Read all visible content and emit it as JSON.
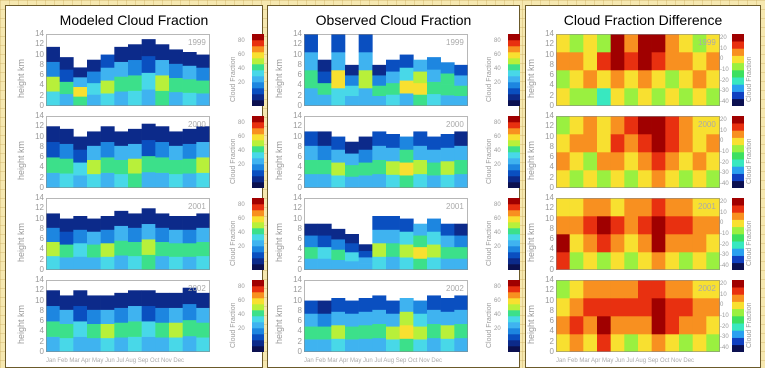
{
  "titles": [
    "Modeled Cloud Fraction",
    "Observed Cloud Fraction",
    "Cloud Fraction Difference"
  ],
  "years": [
    "1999",
    "2000",
    "2001",
    "2002"
  ],
  "ylabel": "height km",
  "yticks": [
    "0",
    "2",
    "4",
    "6",
    "8",
    "10",
    "12",
    "14"
  ],
  "colorbar_label": "Cloud Fraction",
  "cb_ticks_abs": [
    "80",
    "60",
    "40",
    "20"
  ],
  "cb_ticks_diff": [
    "20",
    "10",
    "0",
    "-10",
    "-20",
    "-30",
    "-40"
  ],
  "months_label": "Jan Feb Mar Apr May Jun  Jul  Aug Sep Oct Nov Dec",
  "colors": {
    "abs_scale": [
      "#0b1050",
      "#0c2a8a",
      "#0a4fc0",
      "#1d86e0",
      "#3fb3f0",
      "#48d8e8",
      "#3ce08a",
      "#b8f03a",
      "#f8e030",
      "#f89020",
      "#e83010",
      "#a00000"
    ],
    "diff_scale": [
      "#0b1050",
      "#1040c0",
      "#2aa0f0",
      "#38e8c0",
      "#3ce060",
      "#9af040",
      "#f8e030",
      "#f89020",
      "#e83010",
      "#a00000"
    ]
  },
  "chart_data": [
    {
      "type": "heatmap",
      "title": "Modeled Cloud Fraction",
      "x": [
        "Jan",
        "Feb",
        "Mar",
        "Apr",
        "May",
        "Jun",
        "Jul",
        "Aug",
        "Sep",
        "Oct",
        "Nov",
        "Dec"
      ],
      "y_km_range": [
        0,
        14
      ],
      "value_range": [
        0,
        90
      ],
      "panels": [
        {
          "year": "1999",
          "tops": [
            11.5,
            9.5,
            7.5,
            9,
            10,
            11.5,
            12,
            13,
            12,
            11,
            10.5,
            10
          ],
          "profiles": [
            [
              40,
              55,
              25,
              10
            ],
            [
              35,
              45,
              20,
              8
            ],
            [
              45,
              60,
              30,
              12
            ],
            [
              30,
              40,
              25,
              10
            ],
            [
              40,
              55,
              35,
              15
            ],
            [
              35,
              50,
              30,
              12
            ],
            [
              40,
              45,
              25,
              10
            ],
            [
              30,
              40,
              20,
              8
            ],
            [
              45,
              55,
              30,
              10
            ],
            [
              35,
              45,
              25,
              10
            ],
            [
              40,
              50,
              30,
              12
            ],
            [
              35,
              50,
              25,
              10
            ]
          ]
        },
        {
          "year": "2000",
          "tops": [
            12,
            11.5,
            10,
            11,
            12,
            11,
            11.5,
            12.5,
            12,
            11,
            11.5,
            12
          ],
          "profiles": [
            [
              35,
              50,
              20,
              8
            ],
            [
              40,
              45,
              25,
              10
            ],
            [
              30,
              40,
              20,
              10
            ],
            [
              40,
              55,
              30,
              12
            ],
            [
              35,
              45,
              25,
              10
            ],
            [
              40,
              50,
              30,
              12
            ],
            [
              45,
              55,
              30,
              10
            ],
            [
              30,
              45,
              20,
              8
            ],
            [
              35,
              50,
              25,
              10
            ],
            [
              40,
              45,
              30,
              12
            ],
            [
              35,
              50,
              25,
              10
            ],
            [
              40,
              55,
              30,
              12
            ]
          ]
        },
        {
          "year": "2001",
          "tops": [
            11,
            10,
            10.5,
            10,
            10.5,
            11.5,
            11,
            12,
            11,
            10.5,
            10.5,
            11
          ],
          "profiles": [
            [
              40,
              55,
              25,
              10
            ],
            [
              35,
              45,
              20,
              8
            ],
            [
              30,
              40,
              25,
              10
            ],
            [
              35,
              50,
              30,
              12
            ],
            [
              40,
              55,
              25,
              10
            ],
            [
              35,
              45,
              30,
              12
            ],
            [
              40,
              50,
              25,
              10
            ],
            [
              45,
              55,
              30,
              10
            ],
            [
              35,
              45,
              25,
              12
            ],
            [
              40,
              50,
              30,
              10
            ],
            [
              35,
              45,
              25,
              10
            ],
            [
              40,
              50,
              30,
              12
            ]
          ]
        },
        {
          "year": "2002",
          "tops": [
            12,
            11,
            12,
            11,
            11,
            11.5,
            12,
            12,
            11.5,
            11.5,
            12.5,
            11.5
          ],
          "profiles": [
            [
              35,
              45,
              25,
              10
            ],
            [
              40,
              50,
              30,
              12
            ],
            [
              35,
              40,
              20,
              8
            ],
            [
              30,
              50,
              25,
              10
            ],
            [
              40,
              55,
              30,
              12
            ],
            [
              35,
              45,
              25,
              10
            ],
            [
              40,
              50,
              30,
              12
            ],
            [
              30,
              40,
              20,
              10
            ],
            [
              35,
              45,
              25,
              10
            ],
            [
              40,
              55,
              30,
              12
            ],
            [
              35,
              50,
              25,
              10
            ],
            [
              40,
              45,
              30,
              12
            ]
          ]
        }
      ]
    },
    {
      "type": "heatmap",
      "title": "Observed Cloud Fraction",
      "x": [
        "Jan",
        "Feb",
        "Mar",
        "Apr",
        "May",
        "Jun",
        "Jul",
        "Aug",
        "Sep",
        "Oct",
        "Nov",
        "Dec"
      ],
      "y_km_range": [
        0,
        14
      ],
      "value_range": [
        0,
        90
      ],
      "panels": [
        {
          "year": "1999",
          "tops": [
            14,
            9,
            14,
            8,
            14,
            8,
            9,
            10,
            9,
            9.5,
            8.5,
            8
          ],
          "profiles": [
            [
              30,
              50,
              35,
              15
            ],
            [
              35,
              45,
              20,
              10
            ],
            [
              40,
              60,
              30,
              20
            ],
            [
              30,
              40,
              25,
              10
            ],
            [
              35,
              55,
              30,
              15
            ],
            [
              30,
              45,
              25,
              12
            ],
            [
              40,
              50,
              30,
              15
            ],
            [
              35,
              60,
              40,
              20
            ],
            [
              45,
              65,
              55,
              30
            ],
            [
              40,
              50,
              35,
              25
            ],
            [
              35,
              50,
              45,
              25
            ],
            [
              30,
              45,
              30,
              15
            ]
          ]
        },
        {
          "year": "2000",
          "tops": [
            11,
            11,
            10,
            9,
            10,
            11,
            10.5,
            10,
            11,
            10,
            10.5,
            11
          ],
          "profiles": [
            [
              35,
              50,
              30,
              15
            ],
            [
              30,
              45,
              25,
              10
            ],
            [
              40,
              55,
              30,
              15
            ],
            [
              35,
              45,
              30,
              12
            ],
            [
              30,
              50,
              25,
              12
            ],
            [
              35,
              50,
              30,
              15
            ],
            [
              40,
              55,
              35,
              20
            ],
            [
              45,
              60,
              45,
              25
            ],
            [
              40,
              55,
              35,
              20
            ],
            [
              35,
              50,
              30,
              15
            ],
            [
              40,
              55,
              30,
              15
            ],
            [
              35,
              45,
              30,
              12
            ]
          ]
        },
        {
          "year": "2001",
          "tops": [
            9,
            9,
            8,
            7,
            5,
            10.5,
            10.5,
            10,
            9,
            10,
            9,
            9
          ],
          "profiles": [
            [
              30,
              45,
              25,
              12
            ],
            [
              35,
              40,
              20,
              10
            ],
            [
              30,
              45,
              25,
              10
            ],
            [
              35,
              40,
              20,
              8
            ],
            [
              30,
              35,
              20,
              8
            ],
            [
              40,
              55,
              30,
              15
            ],
            [
              35,
              50,
              30,
              15
            ],
            [
              40,
              55,
              40,
              20
            ],
            [
              45,
              60,
              50,
              35
            ],
            [
              40,
              55,
              40,
              25
            ],
            [
              35,
              50,
              30,
              15
            ],
            [
              30,
              45,
              25,
              12
            ]
          ]
        },
        {
          "year": "2002",
          "tops": [
            10,
            10,
            10.5,
            10,
            10.5,
            11,
            10,
            10.5,
            10,
            11,
            10.5,
            11
          ],
          "profiles": [
            [
              35,
              50,
              30,
              15
            ],
            [
              30,
              45,
              25,
              12
            ],
            [
              40,
              55,
              30,
              15
            ],
            [
              35,
              50,
              35,
              20
            ],
            [
              30,
              45,
              30,
              15
            ],
            [
              35,
              50,
              30,
              15
            ],
            [
              40,
              55,
              35,
              20
            ],
            [
              45,
              60,
              55,
              35
            ],
            [
              40,
              55,
              40,
              25
            ],
            [
              35,
              50,
              35,
              20
            ],
            [
              40,
              55,
              30,
              15
            ],
            [
              35,
              50,
              30,
              15
            ]
          ]
        }
      ]
    },
    {
      "type": "heatmap",
      "title": "Cloud Fraction Difference",
      "x": [
        "Jan",
        "Feb",
        "Mar",
        "Apr",
        "May",
        "Jun",
        "Jul",
        "Aug",
        "Sep",
        "Oct",
        "Nov",
        "Dec"
      ],
      "y_km_range": [
        0,
        14
      ],
      "value_range": [
        -40,
        20
      ],
      "panels": [
        {
          "year": "1999",
          "profiles": [
            [
              0,
              -5,
              5,
              0
            ],
            [
              -5,
              0,
              5,
              -5
            ],
            [
              -10,
              5,
              0,
              0
            ],
            [
              -20,
              0,
              10,
              -5
            ],
            [
              0,
              5,
              15,
              20
            ],
            [
              -5,
              0,
              10,
              5
            ],
            [
              0,
              5,
              15,
              18
            ],
            [
              -5,
              0,
              10,
              15
            ],
            [
              0,
              -10,
              5,
              5
            ],
            [
              -5,
              0,
              5,
              0
            ],
            [
              0,
              5,
              0,
              -5
            ],
            [
              -5,
              0,
              5,
              0
            ]
          ]
        },
        {
          "year": "2000",
          "profiles": [
            [
              0,
              5,
              0,
              -5
            ],
            [
              -5,
              0,
              5,
              0
            ],
            [
              0,
              -5,
              5,
              5
            ],
            [
              -5,
              5,
              0,
              0
            ],
            [
              0,
              5,
              10,
              5
            ],
            [
              -5,
              0,
              5,
              10
            ],
            [
              0,
              5,
              10,
              15
            ],
            [
              5,
              10,
              15,
              18
            ],
            [
              0,
              5,
              10,
              10
            ],
            [
              -5,
              0,
              5,
              5
            ],
            [
              0,
              5,
              0,
              0
            ],
            [
              -5,
              0,
              5,
              0
            ]
          ]
        },
        {
          "year": "2001",
          "profiles": [
            [
              10,
              15,
              5,
              0
            ],
            [
              -5,
              0,
              5,
              0
            ],
            [
              0,
              5,
              10,
              5
            ],
            [
              -5,
              10,
              15,
              5
            ],
            [
              0,
              5,
              10,
              0
            ],
            [
              -10,
              0,
              5,
              5
            ],
            [
              0,
              5,
              10,
              5
            ],
            [
              5,
              15,
              20,
              10
            ],
            [
              0,
              5,
              10,
              5
            ],
            [
              -5,
              5,
              10,
              5
            ],
            [
              0,
              5,
              5,
              0
            ],
            [
              -5,
              0,
              5,
              0
            ]
          ]
        },
        {
          "year": "2002",
          "profiles": [
            [
              0,
              5,
              0,
              -5
            ],
            [
              5,
              10,
              5,
              0
            ],
            [
              0,
              5,
              10,
              5
            ],
            [
              10,
              20,
              10,
              5
            ],
            [
              0,
              5,
              10,
              5
            ],
            [
              -5,
              5,
              10,
              5
            ],
            [
              0,
              5,
              10,
              10
            ],
            [
              5,
              15,
              15,
              10
            ],
            [
              0,
              10,
              10,
              5
            ],
            [
              -5,
              5,
              10,
              5
            ],
            [
              0,
              5,
              5,
              0
            ],
            [
              -5,
              0,
              5,
              0
            ]
          ]
        }
      ]
    }
  ]
}
